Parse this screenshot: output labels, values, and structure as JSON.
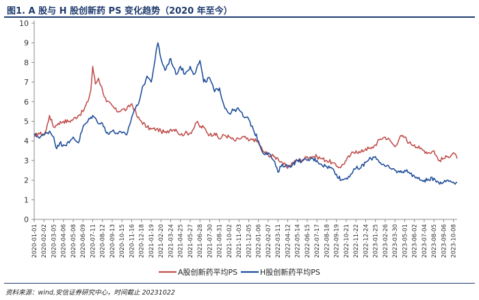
{
  "header": {
    "title": "图1. A 股与 H 股创新药 PS 变化趋势（2020 年至今）"
  },
  "footer": {
    "source": "资料来源：wind,安信证券研究中心，时间截止 20231022"
  },
  "colors": {
    "a_share": "#c0504d",
    "h_share": "#1f4e9a",
    "title": "#1f3b6e",
    "axis": "#888888"
  },
  "chart_data": {
    "type": "line",
    "title": "A 股与 H 股创新药 PS 变化趋势（2020 年至今）",
    "xlabel": "",
    "ylabel": "",
    "ylim": [
      0,
      10
    ],
    "yticks": [
      0,
      1,
      2,
      3,
      4,
      5,
      6,
      7,
      8,
      9,
      10
    ],
    "grid": false,
    "legend_position": "bottom",
    "xtick_labels": [
      "2020-01-01",
      "2020-02-02",
      "2020-03-05",
      "2020-04-06",
      "2020-05-08",
      "2020-06-09",
      "2020-07-11",
      "2020-08-12",
      "2020-09-13",
      "2020-10-15",
      "2020-11-16",
      "2020-12-18",
      "2021-01-19",
      "2021-02-20",
      "2021-03-24",
      "2021-04-25",
      "2021-05-27",
      "2021-06-28",
      "2021-07-30",
      "2021-08-31",
      "2021-10-02",
      "2021-11-03",
      "2021-12-05",
      "2022-01-06",
      "2022-02-07",
      "2022-03-11",
      "2022-04-12",
      "2022-05-14",
      "2022-06-15",
      "2022-07-17",
      "2022-08-18",
      "2022-09-19",
      "2022-10-21",
      "2022-11-22",
      "2022-12-24",
      "2023-01-25",
      "2023-02-26",
      "2023-03-30",
      "2023-05-01",
      "2023-06-02",
      "2023-07-04",
      "2023-08-05",
      "2023-09-06",
      "2023-10-08"
    ],
    "x_range": [
      "2020-01-01",
      "2023-10-20"
    ],
    "series": [
      {
        "name": "A股创新药平均PS",
        "color": "#c0504d",
        "points": [
          [
            "2020-01-01",
            4.2
          ],
          [
            "2020-01-15",
            4.4
          ],
          [
            "2020-02-02",
            4.3
          ],
          [
            "2020-02-10",
            4.6
          ],
          [
            "2020-02-20",
            5.3
          ],
          [
            "2020-03-05",
            4.7
          ],
          [
            "2020-03-20",
            4.9
          ],
          [
            "2020-04-06",
            5.0
          ],
          [
            "2020-04-25",
            5.0
          ],
          [
            "2020-05-08",
            5.1
          ],
          [
            "2020-05-25",
            5.3
          ],
          [
            "2020-06-09",
            5.5
          ],
          [
            "2020-06-25",
            6.0
          ],
          [
            "2020-07-05",
            6.6
          ],
          [
            "2020-07-11",
            7.8
          ],
          [
            "2020-07-20",
            6.9
          ],
          [
            "2020-07-30",
            7.2
          ],
          [
            "2020-08-12",
            6.6
          ],
          [
            "2020-08-25",
            6.0
          ],
          [
            "2020-09-13",
            5.8
          ],
          [
            "2020-09-28",
            5.5
          ],
          [
            "2020-10-15",
            5.6
          ],
          [
            "2020-10-30",
            5.6
          ],
          [
            "2020-11-16",
            5.9
          ],
          [
            "2020-11-25",
            5.6
          ],
          [
            "2020-12-05",
            5.2
          ],
          [
            "2020-12-18",
            5.0
          ],
          [
            "2021-01-05",
            4.7
          ],
          [
            "2021-01-19",
            4.6
          ],
          [
            "2021-02-05",
            4.6
          ],
          [
            "2021-02-20",
            4.5
          ],
          [
            "2021-03-10",
            4.4
          ],
          [
            "2021-03-24",
            4.6
          ],
          [
            "2021-04-10",
            4.6
          ],
          [
            "2021-04-25",
            4.3
          ],
          [
            "2021-05-10",
            4.4
          ],
          [
            "2021-05-27",
            4.4
          ],
          [
            "2021-06-10",
            4.7
          ],
          [
            "2021-06-20",
            5.0
          ],
          [
            "2021-06-28",
            4.7
          ],
          [
            "2021-07-10",
            4.7
          ],
          [
            "2021-07-30",
            4.3
          ],
          [
            "2021-08-15",
            4.4
          ],
          [
            "2021-08-31",
            4.1
          ],
          [
            "2021-09-15",
            4.3
          ],
          [
            "2021-10-02",
            4.2
          ],
          [
            "2021-10-20",
            4.0
          ],
          [
            "2021-11-03",
            4.1
          ],
          [
            "2021-11-20",
            4.2
          ],
          [
            "2021-12-05",
            4.0
          ],
          [
            "2021-12-20",
            4.1
          ],
          [
            "2022-01-06",
            3.9
          ],
          [
            "2022-01-20",
            3.5
          ],
          [
            "2022-02-07",
            3.3
          ],
          [
            "2022-02-25",
            3.2
          ],
          [
            "2022-03-11",
            3.1
          ],
          [
            "2022-03-25",
            2.9
          ],
          [
            "2022-04-12",
            2.6
          ],
          [
            "2022-04-28",
            2.9
          ],
          [
            "2022-05-14",
            3.0
          ],
          [
            "2022-05-30",
            3.0
          ],
          [
            "2022-06-15",
            3.2
          ],
          [
            "2022-07-01",
            3.2
          ],
          [
            "2022-07-17",
            3.2
          ],
          [
            "2022-08-01",
            3.1
          ],
          [
            "2022-08-18",
            3.0
          ],
          [
            "2022-09-05",
            2.9
          ],
          [
            "2022-09-19",
            2.7
          ],
          [
            "2022-10-05",
            2.7
          ],
          [
            "2022-10-21",
            3.0
          ],
          [
            "2022-11-05",
            3.3
          ],
          [
            "2022-11-22",
            3.5
          ],
          [
            "2022-12-05",
            3.4
          ],
          [
            "2022-12-24",
            3.6
          ],
          [
            "2023-01-10",
            3.6
          ],
          [
            "2023-01-25",
            3.8
          ],
          [
            "2023-02-10",
            4.1
          ],
          [
            "2023-02-26",
            4.2
          ],
          [
            "2023-03-15",
            4.0
          ],
          [
            "2023-03-30",
            3.7
          ],
          [
            "2023-04-15",
            4.2
          ],
          [
            "2023-05-01",
            4.2
          ],
          [
            "2023-05-15",
            3.9
          ],
          [
            "2023-06-02",
            3.8
          ],
          [
            "2023-06-20",
            3.6
          ],
          [
            "2023-07-04",
            3.5
          ],
          [
            "2023-07-20",
            3.4
          ],
          [
            "2023-08-05",
            3.5
          ],
          [
            "2023-08-20",
            3.0
          ],
          [
            "2023-09-06",
            3.1
          ],
          [
            "2023-09-20",
            3.2
          ],
          [
            "2023-10-08",
            3.4
          ],
          [
            "2023-10-20",
            3.1
          ]
        ]
      },
      {
        "name": "H股创新药平均PS",
        "color": "#1f4e9a",
        "points": [
          [
            "2020-01-01",
            4.3
          ],
          [
            "2020-01-15",
            4.2
          ],
          [
            "2020-02-02",
            4.3
          ],
          [
            "2020-02-20",
            4.5
          ],
          [
            "2020-03-05",
            4.2
          ],
          [
            "2020-03-15",
            3.6
          ],
          [
            "2020-03-25",
            3.9
          ],
          [
            "2020-04-06",
            3.8
          ],
          [
            "2020-04-25",
            3.9
          ],
          [
            "2020-05-08",
            4.2
          ],
          [
            "2020-05-25",
            3.9
          ],
          [
            "2020-06-09",
            4.7
          ],
          [
            "2020-06-25",
            5.0
          ],
          [
            "2020-07-11",
            5.3
          ],
          [
            "2020-07-25",
            5.0
          ],
          [
            "2020-08-12",
            4.9
          ],
          [
            "2020-08-25",
            4.4
          ],
          [
            "2020-09-13",
            4.5
          ],
          [
            "2020-09-28",
            4.4
          ],
          [
            "2020-10-15",
            4.4
          ],
          [
            "2020-10-30",
            4.3
          ],
          [
            "2020-11-16",
            5.2
          ],
          [
            "2020-11-25",
            5.6
          ],
          [
            "2020-12-05",
            5.8
          ],
          [
            "2020-12-18",
            6.5
          ],
          [
            "2021-01-05",
            7.3
          ],
          [
            "2021-01-19",
            7.0
          ],
          [
            "2021-02-01",
            8.2
          ],
          [
            "2021-02-10",
            9.0
          ],
          [
            "2021-02-20",
            8.2
          ],
          [
            "2021-03-05",
            7.6
          ],
          [
            "2021-03-24",
            8.2
          ],
          [
            "2021-04-10",
            7.4
          ],
          [
            "2021-04-25",
            7.8
          ],
          [
            "2021-05-10",
            7.4
          ],
          [
            "2021-05-27",
            7.8
          ],
          [
            "2021-06-10",
            7.4
          ],
          [
            "2021-06-28",
            8.1
          ],
          [
            "2021-07-10",
            7.0
          ],
          [
            "2021-07-30",
            7.2
          ],
          [
            "2021-08-15",
            6.5
          ],
          [
            "2021-08-31",
            6.7
          ],
          [
            "2021-09-15",
            5.8
          ],
          [
            "2021-10-02",
            5.4
          ],
          [
            "2021-10-20",
            5.6
          ],
          [
            "2021-11-03",
            5.6
          ],
          [
            "2021-11-20",
            5.2
          ],
          [
            "2021-12-05",
            5.1
          ],
          [
            "2021-12-20",
            4.6
          ],
          [
            "2022-01-06",
            4.0
          ],
          [
            "2022-01-20",
            3.4
          ],
          [
            "2022-02-07",
            3.4
          ],
          [
            "2022-02-25",
            3.0
          ],
          [
            "2022-03-11",
            2.4
          ],
          [
            "2022-03-25",
            2.8
          ],
          [
            "2022-04-12",
            2.7
          ],
          [
            "2022-04-28",
            2.8
          ],
          [
            "2022-05-14",
            3.0
          ],
          [
            "2022-05-30",
            3.0
          ],
          [
            "2022-06-15",
            3.0
          ],
          [
            "2022-07-01",
            3.1
          ],
          [
            "2022-07-17",
            3.0
          ],
          [
            "2022-08-01",
            2.8
          ],
          [
            "2022-08-18",
            2.7
          ],
          [
            "2022-09-05",
            2.6
          ],
          [
            "2022-09-19",
            2.3
          ],
          [
            "2022-10-05",
            2.0
          ],
          [
            "2022-10-21",
            2.1
          ],
          [
            "2022-11-05",
            2.3
          ],
          [
            "2022-11-22",
            2.6
          ],
          [
            "2022-12-05",
            2.6
          ],
          [
            "2022-12-24",
            2.9
          ],
          [
            "2023-01-10",
            3.1
          ],
          [
            "2023-01-25",
            3.2
          ],
          [
            "2023-02-10",
            2.9
          ],
          [
            "2023-02-26",
            2.7
          ],
          [
            "2023-03-15",
            2.6
          ],
          [
            "2023-03-30",
            2.5
          ],
          [
            "2023-04-15",
            2.4
          ],
          [
            "2023-05-01",
            2.5
          ],
          [
            "2023-05-15",
            2.4
          ],
          [
            "2023-06-02",
            2.2
          ],
          [
            "2023-06-20",
            2.0
          ],
          [
            "2023-07-04",
            2.0
          ],
          [
            "2023-07-20",
            2.0
          ],
          [
            "2023-08-05",
            2.1
          ],
          [
            "2023-08-20",
            1.9
          ],
          [
            "2023-09-06",
            1.9
          ],
          [
            "2023-09-20",
            2.0
          ],
          [
            "2023-10-08",
            1.9
          ],
          [
            "2023-10-20",
            1.9
          ]
        ]
      }
    ]
  }
}
